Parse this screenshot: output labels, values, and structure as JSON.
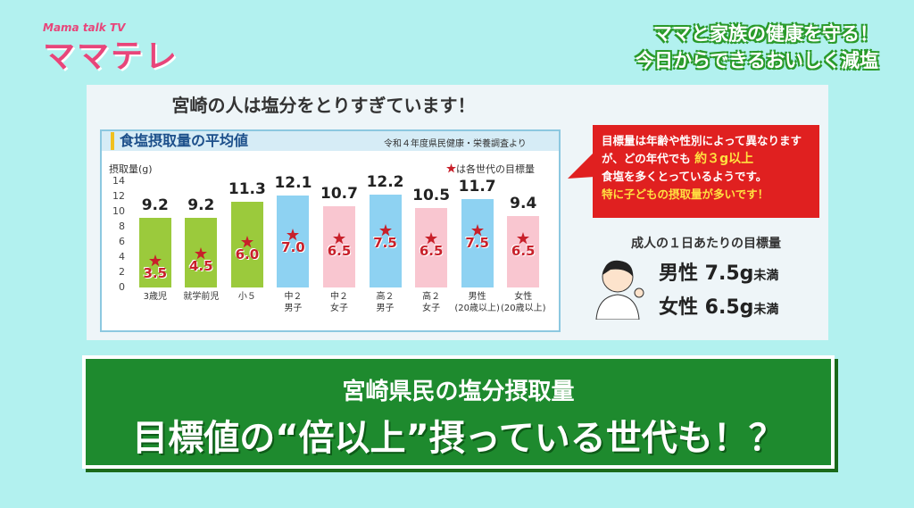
{
  "logo": {
    "sub": "Mama talk TV",
    "main": "ママテレ"
  },
  "header": {
    "line1": "ママと家族の健康を守る！",
    "line2": "今日からできるおいしく減塩"
  },
  "panel_title": "宮崎の人は塩分をとりすぎています！",
  "chart_data": {
    "type": "bar",
    "title": "食塩摂取量の平均値",
    "source": "令和４年度県民健康・栄養調査より",
    "ylabel": "摂取量(g)",
    "categories": [
      "3歳児",
      "就学前児",
      "小５",
      "中２\n男子",
      "中２\n女子",
      "高２\n男子",
      "高２\n女子",
      "男性\n(20歳以上)",
      "女性\n(20歳以上)"
    ],
    "colors": [
      "#9bca3c",
      "#9bca3c",
      "#9bca3c",
      "#8ed2f2",
      "#f9c6d0",
      "#8ed2f2",
      "#f9c6d0",
      "#8ed2f2",
      "#f9c6d0"
    ],
    "series": [
      {
        "values": [
          9.2,
          9.2,
          11.3,
          12.1,
          10.7,
          12.2,
          10.5,
          11.7,
          9.4
        ]
      },
      {
        "name": "は各世代の目標量",
        "color": "#c8202a",
        "values": [
          3.5,
          4.5,
          6.0,
          7.0,
          6.5,
          7.5,
          6.5,
          7.5,
          6.5
        ],
        "value_labels": [
          "3.5",
          "4.5",
          "6.0",
          "7.0",
          "6.5",
          "7.5",
          "6.5",
          "7.5",
          "6.5"
        ]
      }
    ],
    "ylim": [
      0,
      14
    ],
    "yticks": [
      0,
      2,
      4,
      6,
      8,
      10,
      12,
      14
    ],
    "grid": false
  },
  "callout": {
    "text1": "目標量は年齢や性別によって異なりますが、どの年代でも ",
    "emph": "約３g以上",
    "text2": "食塩を多くとっているようです。",
    "text3": "特に子どもの摂取量が多いです！"
  },
  "adult": {
    "title": "成人の１日あたりの目標量",
    "rows": [
      {
        "label": "男性 7.5g",
        "suffix": "未満"
      },
      {
        "label": "女性 6.5g",
        "suffix": "未満"
      }
    ]
  },
  "banner": {
    "sub": "宮崎県民の塩分摂取量",
    "main": "目標値の“倍以上”摂っている世代も！？"
  }
}
